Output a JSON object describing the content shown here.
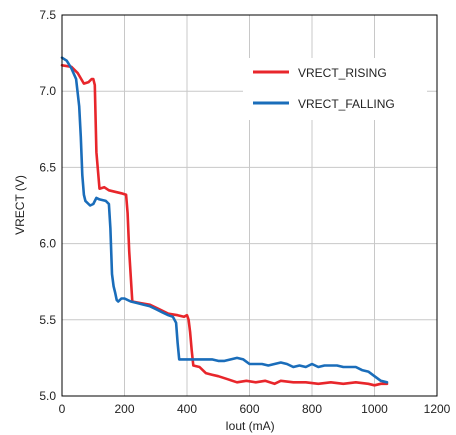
{
  "chart_data": {
    "type": "line",
    "xlabel": "Iout (mA)",
    "ylabel": "VRECT (V)",
    "xlim": [
      0,
      1200
    ],
    "ylim": [
      5.0,
      7.5
    ],
    "x_ticks": [
      0,
      200,
      400,
      600,
      800,
      1000,
      1200
    ],
    "y_ticks": [
      5.0,
      5.5,
      6.0,
      6.5,
      7.0,
      7.5
    ],
    "x_tick_labels": [
      "0",
      "200",
      "400",
      "600",
      "800",
      "1000",
      "1200"
    ],
    "y_tick_labels": [
      "5.0",
      "5.5",
      "6.0",
      "6.5",
      "7.0",
      "7.5"
    ],
    "grid": true,
    "legend_position": "top-right",
    "series": [
      {
        "name": "VRECT_RISING",
        "color": "#e8262b",
        "x": [
          0,
          30,
          50,
          70,
          85,
          95,
          100,
          105,
          110,
          120,
          135,
          150,
          170,
          190,
          205,
          210,
          215,
          225,
          250,
          280,
          310,
          340,
          370,
          390,
          400,
          405,
          410,
          415,
          420,
          440,
          460,
          480,
          500,
          530,
          560,
          590,
          620,
          650,
          680,
          700,
          740,
          780,
          820,
          860,
          900,
          940,
          980,
          1000,
          1020,
          1040
        ],
        "y": [
          7.17,
          7.16,
          7.12,
          7.05,
          7.06,
          7.08,
          7.08,
          7.04,
          6.6,
          6.36,
          6.37,
          6.35,
          6.34,
          6.33,
          6.32,
          6.2,
          5.95,
          5.62,
          5.61,
          5.6,
          5.57,
          5.54,
          5.53,
          5.52,
          5.53,
          5.5,
          5.42,
          5.3,
          5.2,
          5.19,
          5.15,
          5.14,
          5.13,
          5.11,
          5.09,
          5.1,
          5.09,
          5.1,
          5.08,
          5.1,
          5.09,
          5.09,
          5.08,
          5.09,
          5.08,
          5.09,
          5.08,
          5.07,
          5.08,
          5.08
        ]
      },
      {
        "name": "VRECT_FALLING",
        "color": "#1a6dba",
        "x": [
          0,
          15,
          30,
          45,
          55,
          60,
          65,
          70,
          75,
          80,
          90,
          100,
          110,
          120,
          140,
          150,
          155,
          160,
          165,
          170,
          175,
          180,
          190,
          200,
          210,
          220,
          240,
          260,
          280,
          300,
          320,
          340,
          355,
          365,
          370,
          375,
          380,
          400,
          420,
          440,
          460,
          480,
          500,
          520,
          540,
          560,
          580,
          600,
          620,
          640,
          660,
          680,
          700,
          720,
          740,
          760,
          780,
          800,
          820,
          840,
          860,
          880,
          900,
          920,
          940,
          960,
          980,
          1000,
          1020,
          1040
        ],
        "y": [
          7.22,
          7.2,
          7.15,
          7.08,
          6.9,
          6.7,
          6.45,
          6.32,
          6.28,
          6.27,
          6.25,
          6.26,
          6.3,
          6.29,
          6.28,
          6.26,
          6.1,
          5.8,
          5.72,
          5.68,
          5.63,
          5.62,
          5.64,
          5.64,
          5.63,
          5.62,
          5.61,
          5.6,
          5.59,
          5.57,
          5.55,
          5.53,
          5.52,
          5.48,
          5.35,
          5.24,
          5.24,
          5.24,
          5.24,
          5.24,
          5.24,
          5.24,
          5.23,
          5.23,
          5.24,
          5.25,
          5.24,
          5.21,
          5.21,
          5.21,
          5.2,
          5.21,
          5.22,
          5.21,
          5.19,
          5.2,
          5.19,
          5.21,
          5.19,
          5.2,
          5.2,
          5.2,
          5.19,
          5.19,
          5.19,
          5.17,
          5.16,
          5.13,
          5.1,
          5.09
        ]
      }
    ]
  }
}
